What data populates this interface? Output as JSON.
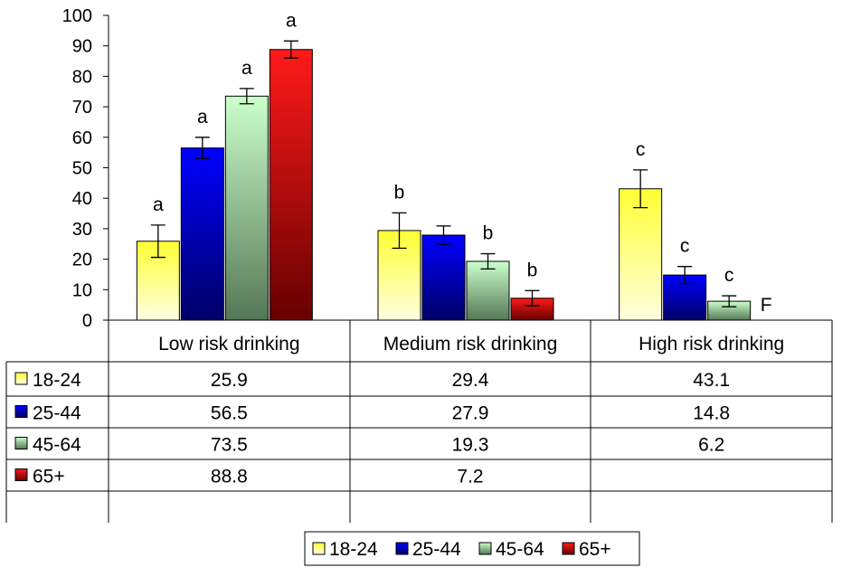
{
  "chart_data": {
    "type": "bar",
    "title": "",
    "xlabel": "",
    "ylabel": "",
    "ylim": [
      0,
      100
    ],
    "yticks": [
      0,
      10,
      20,
      30,
      40,
      50,
      60,
      70,
      80,
      90,
      100
    ],
    "categories": [
      "Low risk drinking",
      "Medium risk drinking",
      "High risk drinking"
    ],
    "legend_position": "bottom",
    "grid": false,
    "error_bars": true,
    "data_table": true,
    "series": [
      {
        "name": "18-24",
        "color": "#ffff00",
        "values": [
          25.9,
          29.4,
          43.1
        ],
        "errors": [
          5.3,
          5.8,
          6.2
        ],
        "letters": [
          "a",
          "b",
          "c"
        ]
      },
      {
        "name": "25-44",
        "color": "#0000cc",
        "values": [
          56.5,
          27.9,
          14.8
        ],
        "errors": [
          3.5,
          3.0,
          2.8
        ],
        "letters": [
          "a",
          "",
          "c"
        ]
      },
      {
        "name": "45-64",
        "color": "#99cc99",
        "values": [
          73.5,
          19.3,
          6.2
        ],
        "errors": [
          2.5,
          2.5,
          1.8
        ],
        "letters": [
          "a",
          "b",
          "c"
        ]
      },
      {
        "name": "65+",
        "color": "#ff0000",
        "values": [
          88.8,
          7.2,
          null
        ],
        "errors": [
          2.8,
          2.5,
          null
        ],
        "letters": [
          "a",
          "b",
          "F"
        ]
      }
    ],
    "table_values": [
      [
        "25.9",
        "29.4",
        "43.1"
      ],
      [
        "56.5",
        "27.9",
        "14.8"
      ],
      [
        "73.5",
        "19.3",
        "6.2"
      ],
      [
        "88.8",
        "7.2",
        ""
      ]
    ]
  }
}
